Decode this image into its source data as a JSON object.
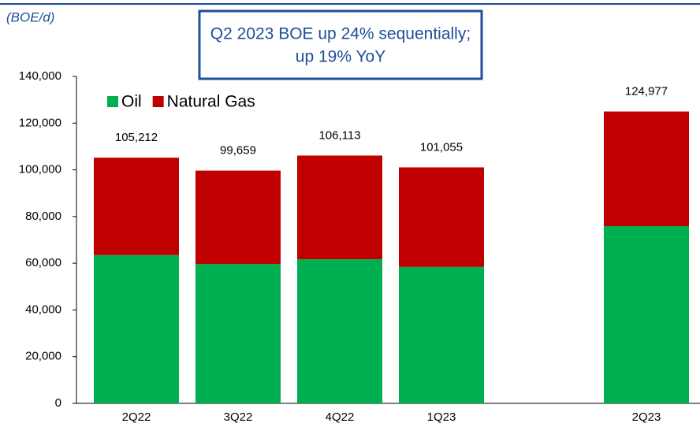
{
  "chart_data": {
    "type": "stacked_bar",
    "unit_label": "(BOE/d)",
    "annotation": [
      "Q2 2023 BOE up 24% sequentially;",
      "up 19% YoY"
    ],
    "categories": [
      "2Q22",
      "3Q22",
      "4Q22",
      "1Q23",
      "2Q23"
    ],
    "series": [
      {
        "name": "Oil",
        "color": "#00b050",
        "values": [
          63500,
          59700,
          61700,
          58400,
          75900
        ]
      },
      {
        "name": "Natural Gas",
        "color": "#c00000",
        "values": [
          41712,
          39959,
          44413,
          42655,
          49077
        ]
      }
    ],
    "totals": [
      105212,
      99659,
      106113,
      101055,
      124977
    ],
    "total_labels": [
      "105,212",
      "99,659",
      "106,113",
      "101,055",
      "124,977"
    ],
    "ylim": [
      0,
      140000
    ],
    "yticks": [
      0,
      {
        "value": 20000,
        "label": "20,000"
      },
      {
        "value": 40000,
        "label": "40,000"
      },
      {
        "value": 60000,
        "label": "60,000"
      },
      {
        "value": 80000,
        "label": "80,000"
      },
      {
        "value": 100000,
        "label": "100,000"
      },
      {
        "value": 120000,
        "label": "120,000"
      },
      {
        "value": 140000,
        "label": "140,000"
      }
    ],
    "legend": "upper-left"
  }
}
